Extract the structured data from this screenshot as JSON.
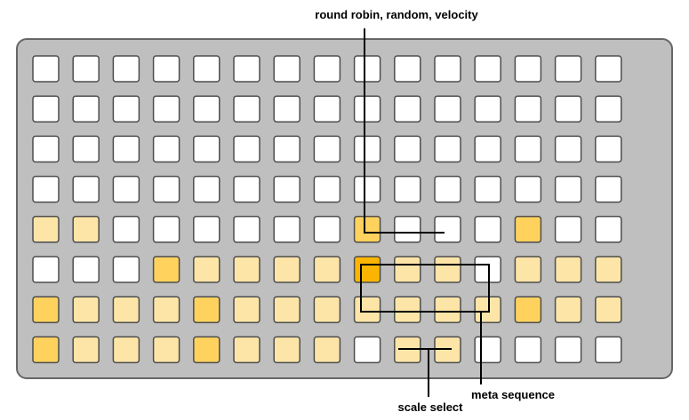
{
  "colors": {
    "device_fill": "#bfbfbf",
    "device_border": "#666666",
    "key_border": "#4d4d4d",
    "off": "#ffffff",
    "light": "#fde5a8",
    "medium": "#ffd25e",
    "dark": "#fbb500",
    "line": "#000000"
  },
  "grid": {
    "rows": [
      [
        "off",
        "off",
        "off",
        "off",
        "off",
        "off",
        "off",
        "off",
        "off",
        "off",
        "off",
        "off",
        "off",
        "off",
        "off"
      ],
      [
        "off",
        "off",
        "off",
        "off",
        "off",
        "off",
        "off",
        "off",
        "off",
        "off",
        "off",
        "off",
        "off",
        "off",
        "off"
      ],
      [
        "off",
        "off",
        "off",
        "off",
        "off",
        "off",
        "off",
        "off",
        "off",
        "off",
        "off",
        "off",
        "off",
        "off",
        "off"
      ],
      [
        "off",
        "off",
        "off",
        "off",
        "off",
        "off",
        "off",
        "off",
        "off",
        "off",
        "off",
        "off",
        "off",
        "off",
        "off"
      ],
      [
        "light",
        "light",
        "off",
        "off",
        "off",
        "off",
        "off",
        "off",
        "medium",
        "off",
        "off",
        "off",
        "medium",
        "off",
        "off"
      ],
      [
        "off",
        "off",
        "off",
        "medium",
        "light",
        "light",
        "light",
        "light",
        "dark",
        "light",
        "light",
        "off",
        "light",
        "light",
        "light"
      ],
      [
        "medium",
        "light",
        "light",
        "light",
        "medium",
        "light",
        "light",
        "light",
        "light",
        "light",
        "light",
        "light",
        "medium",
        "light",
        "light"
      ],
      [
        "medium",
        "light",
        "light",
        "light",
        "medium",
        "light",
        "light",
        "light",
        "off",
        "light",
        "light",
        "off",
        "off",
        "off",
        "off"
      ]
    ]
  },
  "annotations": {
    "round_robin": "round robin, random, velocity",
    "meta_sequence": "meta sequence",
    "scale_select": "scale select"
  }
}
